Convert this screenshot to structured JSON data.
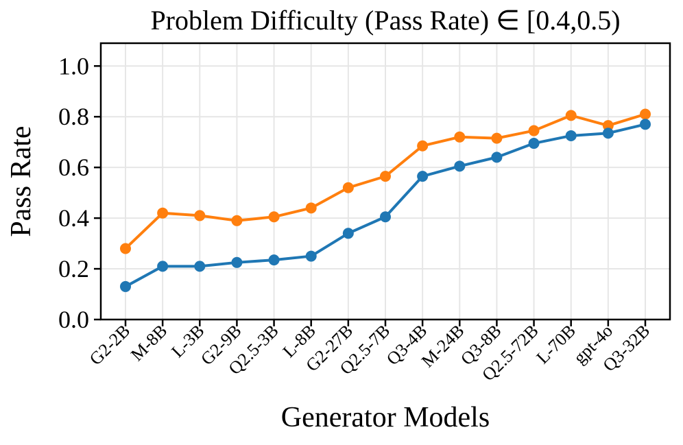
{
  "chart_data": {
    "type": "line",
    "title": "Problem Difficulty (Pass Rate) ∈ [0.4,0.5)",
    "xlabel": "Generator Models",
    "ylabel": "Pass Rate",
    "categories": [
      "G2-2B",
      "M-8B",
      "L-3B",
      "G2-9B",
      "Q2.5-3B",
      "L-8B",
      "G2-27B",
      "Q2.5-7B",
      "Q3-4B",
      "M-24B",
      "Q3-8B",
      "Q2.5-72B",
      "L-70B",
      "gpt-4o",
      "Q3-32B"
    ],
    "series": [
      {
        "name": "upper-series-orange",
        "color": "#ff7f0e",
        "values": [
          0.28,
          0.42,
          0.41,
          0.39,
          0.405,
          0.44,
          0.52,
          0.565,
          0.685,
          0.72,
          0.715,
          0.745,
          0.805,
          0.765,
          0.81
        ]
      },
      {
        "name": "lower-series-blue",
        "color": "#1f77b4",
        "values": [
          0.13,
          0.21,
          0.21,
          0.225,
          0.235,
          0.25,
          0.34,
          0.405,
          0.565,
          0.605,
          0.64,
          0.695,
          0.725,
          0.735,
          0.77
        ]
      }
    ],
    "ytick_labels": [
      "0.0",
      "0.2",
      "0.4",
      "0.6",
      "0.8",
      "1.0"
    ],
    "yticks": [
      0.0,
      0.2,
      0.4,
      0.6,
      0.8,
      1.0
    ],
    "ylim": [
      0.0,
      1.09
    ],
    "grid": true,
    "legend": "none"
  },
  "style": {
    "grid_color": "#e6e6e6",
    "spine_color": "#000000",
    "background": "#ffffff"
  }
}
